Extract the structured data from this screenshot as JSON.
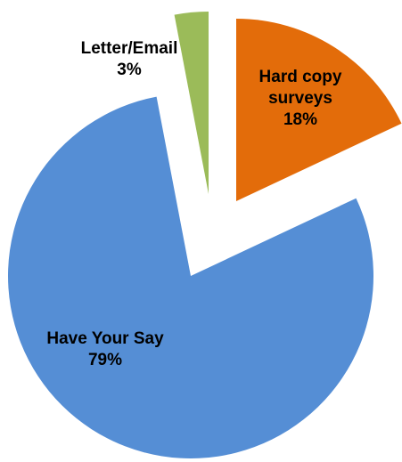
{
  "chart_data": {
    "type": "pie",
    "exploded": true,
    "slices": [
      {
        "label": "Hard copy surveys",
        "label_lines": [
          "Hard copy",
          "surveys"
        ],
        "percent_label": "18%",
        "value": 18,
        "color": "#E36C0A",
        "label_color": "#000000"
      },
      {
        "label": "Have Your Say",
        "label_lines": [
          "Have Your Say"
        ],
        "percent_label": "79%",
        "value": 79,
        "color": "#558ED5",
        "label_color": "#000000"
      },
      {
        "label": "Letter/Email",
        "label_lines": [
          "Letter/Email"
        ],
        "percent_label": "3%",
        "value": 3,
        "color": "#9BBB59",
        "label_color": "#000000"
      }
    ]
  }
}
